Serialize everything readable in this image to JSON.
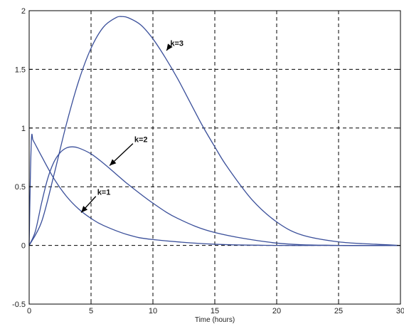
{
  "chart_data": {
    "type": "line",
    "title": "",
    "xlabel": "Time (hours)",
    "ylabel": "",
    "xlim": [
      0,
      30
    ],
    "ylim": [
      -0.5,
      2
    ],
    "xticks": [
      0,
      5,
      10,
      15,
      20,
      25,
      30
    ],
    "yticks": [
      -0.5,
      0,
      0.5,
      1,
      1.5,
      2
    ],
    "xtick_labels": [
      "0",
      "5",
      "10",
      "15",
      "20",
      "25",
      "30"
    ],
    "ytick_labels": [
      "-0.5",
      "0",
      "0.5",
      "1",
      "1.5",
      "2"
    ],
    "grid": true,
    "grid_style": "dashed",
    "line_color": "#3a4f9a",
    "series": [
      {
        "x": [
          0,
          0.1,
          0.2,
          0.3,
          0.5,
          1,
          2,
          3,
          4,
          5,
          6,
          8,
          10,
          15,
          20,
          25,
          30
        ],
        "y": [
          0,
          0.6,
          0.93,
          0.9,
          0.86,
          0.76,
          0.57,
          0.42,
          0.31,
          0.23,
          0.17,
          0.09,
          0.05,
          0.01,
          0.0,
          0.0,
          0.0
        ]
      },
      {
        "x": [
          0,
          0.5,
          1,
          1.5,
          2,
          2.5,
          3,
          3.5,
          4,
          5,
          6,
          7,
          8,
          10,
          12,
          15,
          20,
          25,
          30
        ],
        "y": [
          0,
          0.12,
          0.36,
          0.57,
          0.71,
          0.79,
          0.83,
          0.84,
          0.83,
          0.78,
          0.7,
          0.61,
          0.52,
          0.36,
          0.23,
          0.11,
          0.02,
          0.0,
          0.0
        ]
      },
      {
        "x": [
          0,
          1,
          2,
          3,
          4,
          5,
          6,
          7,
          7.5,
          8,
          9,
          10,
          11,
          12,
          13,
          14,
          15,
          16,
          18,
          20,
          22,
          25,
          28,
          30
        ],
        "y": [
          0,
          0.2,
          0.6,
          1.03,
          1.4,
          1.68,
          1.86,
          1.94,
          1.95,
          1.94,
          1.88,
          1.76,
          1.6,
          1.42,
          1.22,
          1.02,
          0.84,
          0.67,
          0.39,
          0.2,
          0.09,
          0.03,
          0.01,
          0.0
        ]
      }
    ],
    "annotations": [
      {
        "text": "k=1",
        "x": 5.5,
        "y": 0.43,
        "arrow_to_x": 4.2,
        "arrow_to_y": 0.28
      },
      {
        "text": "k=2",
        "x": 8.5,
        "y": 0.88,
        "arrow_to_x": 6.5,
        "arrow_to_y": 0.68
      },
      {
        "text": "k=3",
        "x": 11.4,
        "y": 1.7,
        "arrow_to_x": 11.1,
        "arrow_to_y": 1.66
      }
    ]
  }
}
